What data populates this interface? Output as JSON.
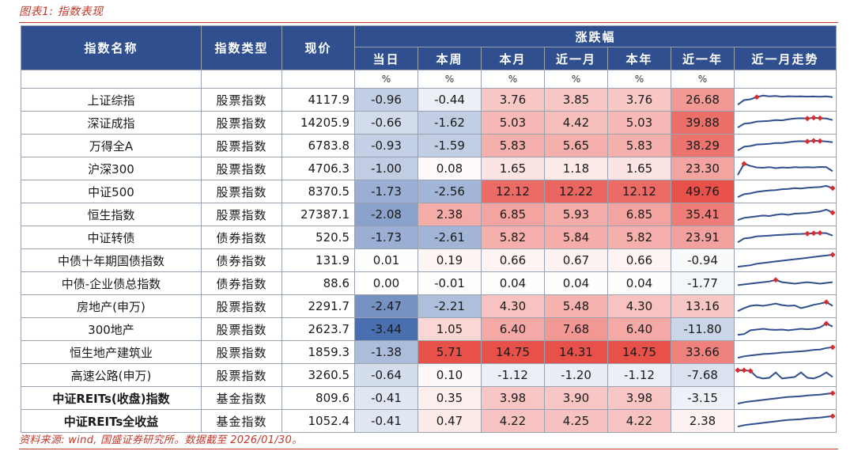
{
  "caption": "图表1: 指数表现",
  "source": "资料来源: wind, 国盛证券研究所。数据截至 2026/01/30。",
  "headers": {
    "name": "指数名称",
    "type": "指数类型",
    "price": "现价",
    "change_group": "涨跌幅",
    "day": "当日",
    "week": "本周",
    "month": "本月",
    "one_month": "近一月",
    "ytd": "本年",
    "one_year": "近一年",
    "trend": "近一月走势"
  },
  "units": [
    "%",
    "%",
    "%",
    "%",
    "%",
    "%"
  ],
  "rows": [
    {
      "name": "上证综指",
      "type": "股票指数",
      "price": "4117.9",
      "vals": [
        "-0.96",
        "-0.44",
        "3.76",
        "3.85",
        "3.76",
        "26.68"
      ]
    },
    {
      "name": "深证成指",
      "type": "股票指数",
      "price": "14205.9",
      "vals": [
        "-0.66",
        "-1.62",
        "5.03",
        "4.42",
        "5.03",
        "39.88"
      ]
    },
    {
      "name": "万得全A",
      "type": "股票指数",
      "price": "6783.8",
      "vals": [
        "-0.93",
        "-1.59",
        "5.83",
        "5.65",
        "5.83",
        "38.29"
      ]
    },
    {
      "name": "沪深300",
      "type": "股票指数",
      "price": "4706.3",
      "vals": [
        "-1.00",
        "0.08",
        "1.65",
        "1.18",
        "1.65",
        "23.30"
      ]
    },
    {
      "name": "中证500",
      "type": "股票指数",
      "price": "8370.5",
      "vals": [
        "-1.73",
        "-2.56",
        "12.12",
        "12.22",
        "12.12",
        "49.76"
      ]
    },
    {
      "name": "恒生指数",
      "type": "股票指数",
      "price": "27387.1",
      "vals": [
        "-2.08",
        "2.38",
        "6.85",
        "5.93",
        "6.85",
        "35.41"
      ]
    },
    {
      "name": "中证转债",
      "type": "债券指数",
      "price": "520.5",
      "vals": [
        "-1.73",
        "-2.61",
        "5.82",
        "5.84",
        "5.82",
        "23.91"
      ]
    },
    {
      "name": "中债十年期国债指数",
      "type": "债券指数",
      "price": "131.9",
      "vals": [
        "0.01",
        "0.19",
        "0.66",
        "0.67",
        "0.66",
        "-0.94"
      ]
    },
    {
      "name": "中债-企业债总指数",
      "type": "债券指数",
      "price": "88.6",
      "vals": [
        "0.00",
        "-0.01",
        "0.04",
        "0.04",
        "0.04",
        "-1.77"
      ]
    },
    {
      "name": "房地产(申万)",
      "type": "股票指数",
      "price": "2291.7",
      "vals": [
        "-2.47",
        "-2.21",
        "4.30",
        "5.48",
        "4.30",
        "13.16"
      ]
    },
    {
      "name": "300地产",
      "type": "股票指数",
      "price": "2623.7",
      "vals": [
        "-3.44",
        "1.05",
        "6.40",
        "7.68",
        "6.40",
        "-11.80"
      ]
    },
    {
      "name": "恒生地产建筑业",
      "type": "股票指数",
      "price": "1859.3",
      "vals": [
        "-1.38",
        "5.71",
        "14.75",
        "14.31",
        "14.75",
        "33.66"
      ]
    },
    {
      "name": "高速公路(申万)",
      "type": "股票指数",
      "price": "3260.5",
      "vals": [
        "-0.64",
        "0.10",
        "-1.12",
        "-1.20",
        "-1.12",
        "-7.68"
      ]
    },
    {
      "name": "中证REITs(收盘)指数",
      "type": "基金指数",
      "price": "809.6",
      "vals": [
        "-0.41",
        "0.35",
        "3.98",
        "3.90",
        "3.98",
        "-3.15"
      ],
      "bold": true
    },
    {
      "name": "中证REITs全收益",
      "type": "基金指数",
      "price": "1052.4",
      "vals": [
        "-0.41",
        "0.47",
        "4.22",
        "4.25",
        "4.22",
        "2.38"
      ],
      "bold": true
    }
  ],
  "colors": {
    "header_bg": "#2f4f8f",
    "negative": "#4a6fb0",
    "positive": "#e8504a",
    "caption": "#c0392b",
    "spark_line": "#2f4f8f",
    "spark_marker": "#d92b2b"
  }
}
